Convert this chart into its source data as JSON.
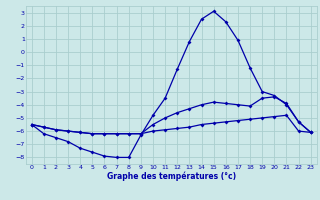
{
  "title": "Graphe des températures (°c)",
  "background_color": "#cce8e8",
  "grid_color": "#aacece",
  "line_color": "#0000aa",
  "xlim": [
    -0.5,
    23.5
  ],
  "ylim": [
    -8.5,
    3.5
  ],
  "yticks": [
    3,
    2,
    1,
    0,
    -1,
    -2,
    -3,
    -4,
    -5,
    -6,
    -7,
    -8
  ],
  "xticks": [
    0,
    1,
    2,
    3,
    4,
    5,
    6,
    7,
    8,
    9,
    10,
    11,
    12,
    13,
    14,
    15,
    16,
    17,
    18,
    19,
    20,
    21,
    22,
    23
  ],
  "hours": [
    0,
    1,
    2,
    3,
    4,
    5,
    6,
    7,
    8,
    9,
    10,
    11,
    12,
    13,
    14,
    15,
    16,
    17,
    18,
    19,
    20,
    21,
    22,
    23
  ],
  "temp_main": [
    -5.5,
    -6.2,
    -6.5,
    -6.8,
    -7.3,
    -7.6,
    -7.9,
    -8.0,
    -8.0,
    -6.3,
    -4.8,
    -3.5,
    -1.3,
    0.8,
    2.5,
    3.1,
    2.3,
    0.9,
    -1.2,
    -3.0,
    -3.3,
    -4.0,
    -5.3,
    -6.1
  ],
  "temp_upper": [
    -5.5,
    -5.7,
    -5.9,
    -6.0,
    -6.1,
    -6.2,
    -6.2,
    -6.2,
    -6.2,
    -6.2,
    -5.5,
    -5.0,
    -4.6,
    -4.3,
    -4.0,
    -3.8,
    -3.9,
    -4.0,
    -4.1,
    -3.5,
    -3.4,
    -3.9,
    -5.3,
    -6.1
  ],
  "temp_lower": [
    -5.5,
    -5.7,
    -5.9,
    -6.0,
    -6.1,
    -6.2,
    -6.2,
    -6.2,
    -6.2,
    -6.2,
    -6.0,
    -5.9,
    -5.8,
    -5.7,
    -5.5,
    -5.4,
    -5.3,
    -5.2,
    -5.1,
    -5.0,
    -4.9,
    -4.8,
    -6.0,
    -6.1
  ]
}
